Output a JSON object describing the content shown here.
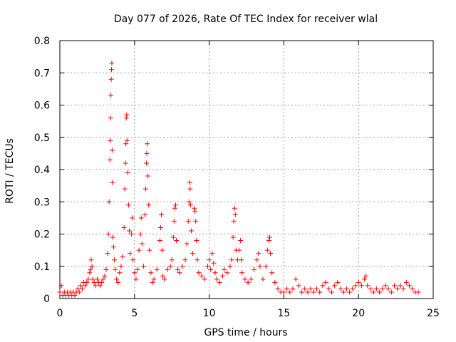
{
  "chart_data": {
    "type": "scatter",
    "title": "Day 077 of 2026, Rate Of TEC Index for receiver wlal",
    "xlabel": "GPS time / hours",
    "ylabel": "ROTI / TECUs",
    "xlim": [
      0,
      25
    ],
    "ylim": [
      0,
      0.8
    ],
    "xticks": [
      0,
      5,
      10,
      15,
      20,
      25
    ],
    "yticks": [
      0,
      0.1,
      0.2,
      0.3,
      0.4,
      0.5,
      0.6,
      0.7,
      0.8
    ],
    "xtick_labels": [
      "0",
      "5",
      "10",
      "15",
      "20",
      "25"
    ],
    "ytick_labels": [
      "0",
      "0.1",
      "0.2",
      "0.3",
      "0.4",
      "0.5",
      "0.6",
      "0.7",
      "0.8"
    ],
    "grid": true,
    "marker": "+",
    "color": "#ff0000",
    "series": [
      {
        "name": "ROTI",
        "points": [
          [
            0.0,
            0.02
          ],
          [
            0.1,
            0.04
          ],
          [
            0.2,
            0.01
          ],
          [
            0.3,
            0.02
          ],
          [
            0.4,
            0.01
          ],
          [
            0.5,
            0.02
          ],
          [
            0.6,
            0.01
          ],
          [
            0.7,
            0.02
          ],
          [
            0.8,
            0.01
          ],
          [
            0.9,
            0.02
          ],
          [
            1.0,
            0.01
          ],
          [
            1.1,
            0.02
          ],
          [
            1.2,
            0.03
          ],
          [
            1.3,
            0.02
          ],
          [
            1.4,
            0.04
          ],
          [
            1.5,
            0.03
          ],
          [
            1.6,
            0.05
          ],
          [
            1.7,
            0.04
          ],
          [
            1.8,
            0.05
          ],
          [
            1.9,
            0.06
          ],
          [
            2.0,
            0.08
          ],
          [
            2.05,
            0.09
          ],
          [
            2.1,
            0.12
          ],
          [
            2.15,
            0.1
          ],
          [
            2.2,
            0.06
          ],
          [
            2.3,
            0.05
          ],
          [
            2.4,
            0.04
          ],
          [
            2.5,
            0.06
          ],
          [
            2.6,
            0.05
          ],
          [
            2.7,
            0.04
          ],
          [
            2.8,
            0.05
          ],
          [
            2.9,
            0.06
          ],
          [
            3.0,
            0.07
          ],
          [
            3.1,
            0.09
          ],
          [
            3.2,
            0.14
          ],
          [
            3.25,
            0.2
          ],
          [
            3.3,
            0.3
          ],
          [
            3.35,
            0.43
          ],
          [
            3.38,
            0.49
          ],
          [
            3.4,
            0.56
          ],
          [
            3.42,
            0.63
          ],
          [
            3.44,
            0.68
          ],
          [
            3.46,
            0.71
          ],
          [
            3.48,
            0.73
          ],
          [
            3.5,
            0.46
          ],
          [
            3.52,
            0.36
          ],
          [
            3.55,
            0.19
          ],
          [
            3.6,
            0.16
          ],
          [
            3.65,
            0.12
          ],
          [
            3.7,
            0.09
          ],
          [
            3.8,
            0.06
          ],
          [
            3.9,
            0.05
          ],
          [
            4.0,
            0.08
          ],
          [
            4.1,
            0.1
          ],
          [
            4.2,
            0.13
          ],
          [
            4.3,
            0.22
          ],
          [
            4.35,
            0.34
          ],
          [
            4.4,
            0.42
          ],
          [
            4.42,
            0.48
          ],
          [
            4.45,
            0.56
          ],
          [
            4.48,
            0.57
          ],
          [
            4.5,
            0.49
          ],
          [
            4.55,
            0.39
          ],
          [
            4.6,
            0.29
          ],
          [
            4.65,
            0.21
          ],
          [
            4.7,
            0.14
          ],
          [
            4.8,
            0.2
          ],
          [
            4.85,
            0.25
          ],
          [
            4.9,
            0.12
          ],
          [
            5.0,
            0.08
          ],
          [
            5.1,
            0.06
          ],
          [
            5.2,
            0.09
          ],
          [
            5.3,
            0.15
          ],
          [
            5.4,
            0.2
          ],
          [
            5.45,
            0.25
          ],
          [
            5.5,
            0.17
          ],
          [
            5.6,
            0.1
          ],
          [
            5.7,
            0.26
          ],
          [
            5.75,
            0.34
          ],
          [
            5.8,
            0.42
          ],
          [
            5.82,
            0.45
          ],
          [
            5.85,
            0.48
          ],
          [
            5.9,
            0.38
          ],
          [
            5.95,
            0.29
          ],
          [
            6.0,
            0.15
          ],
          [
            6.1,
            0.08
          ],
          [
            6.2,
            0.05
          ],
          [
            6.3,
            0.06
          ],
          [
            6.5,
            0.09
          ],
          [
            6.7,
            0.18
          ],
          [
            6.75,
            0.22
          ],
          [
            6.8,
            0.26
          ],
          [
            6.85,
            0.15
          ],
          [
            6.9,
            0.07
          ],
          [
            7.0,
            0.06
          ],
          [
            7.2,
            0.09
          ],
          [
            7.4,
            0.1
          ],
          [
            7.5,
            0.12
          ],
          [
            7.6,
            0.19
          ],
          [
            7.65,
            0.24
          ],
          [
            7.7,
            0.28
          ],
          [
            7.75,
            0.29
          ],
          [
            7.8,
            0.18
          ],
          [
            7.9,
            0.09
          ],
          [
            8.0,
            0.08
          ],
          [
            8.2,
            0.1
          ],
          [
            8.4,
            0.12
          ],
          [
            8.5,
            0.17
          ],
          [
            8.6,
            0.24
          ],
          [
            8.65,
            0.3
          ],
          [
            8.7,
            0.36
          ],
          [
            8.72,
            0.34
          ],
          [
            8.75,
            0.29
          ],
          [
            8.8,
            0.21
          ],
          [
            8.9,
            0.14
          ],
          [
            9.0,
            0.28
          ],
          [
            9.05,
            0.27
          ],
          [
            9.1,
            0.24
          ],
          [
            9.15,
            0.18
          ],
          [
            9.2,
            0.12
          ],
          [
            9.3,
            0.08
          ],
          [
            9.5,
            0.07
          ],
          [
            9.7,
            0.06
          ],
          [
            9.9,
            0.1
          ],
          [
            10.0,
            0.12
          ],
          [
            10.1,
            0.09
          ],
          [
            10.2,
            0.14
          ],
          [
            10.3,
            0.11
          ],
          [
            10.4,
            0.08
          ],
          [
            10.5,
            0.06
          ],
          [
            10.7,
            0.05
          ],
          [
            10.9,
            0.07
          ],
          [
            11.0,
            0.09
          ],
          [
            11.2,
            0.08
          ],
          [
            11.4,
            0.1
          ],
          [
            11.5,
            0.12
          ],
          [
            11.6,
            0.19
          ],
          [
            11.65,
            0.24
          ],
          [
            11.7,
            0.28
          ],
          [
            11.75,
            0.26
          ],
          [
            11.8,
            0.15
          ],
          [
            11.9,
            0.12
          ],
          [
            12.0,
            0.15
          ],
          [
            12.1,
            0.18
          ],
          [
            12.15,
            0.12
          ],
          [
            12.2,
            0.08
          ],
          [
            12.4,
            0.06
          ],
          [
            12.6,
            0.05
          ],
          [
            12.8,
            0.06
          ],
          [
            13.0,
            0.09
          ],
          [
            13.2,
            0.12
          ],
          [
            13.3,
            0.14
          ],
          [
            13.4,
            0.1
          ],
          [
            13.6,
            0.06
          ],
          [
            13.8,
            0.1
          ],
          [
            13.9,
            0.15
          ],
          [
            14.0,
            0.18
          ],
          [
            14.05,
            0.19
          ],
          [
            14.1,
            0.14
          ],
          [
            14.2,
            0.08
          ],
          [
            14.4,
            0.05
          ],
          [
            14.6,
            0.03
          ],
          [
            14.8,
            0.02
          ],
          [
            15.0,
            0.02
          ],
          [
            15.2,
            0.03
          ],
          [
            15.4,
            0.02
          ],
          [
            15.6,
            0.03
          ],
          [
            15.8,
            0.06
          ],
          [
            16.0,
            0.04
          ],
          [
            16.2,
            0.02
          ],
          [
            16.4,
            0.03
          ],
          [
            16.6,
            0.02
          ],
          [
            16.8,
            0.03
          ],
          [
            17.0,
            0.02
          ],
          [
            17.2,
            0.03
          ],
          [
            17.4,
            0.02
          ],
          [
            17.6,
            0.04
          ],
          [
            17.8,
            0.05
          ],
          [
            18.0,
            0.03
          ],
          [
            18.2,
            0.02
          ],
          [
            18.4,
            0.04
          ],
          [
            18.6,
            0.05
          ],
          [
            18.8,
            0.03
          ],
          [
            19.0,
            0.02
          ],
          [
            19.2,
            0.03
          ],
          [
            19.4,
            0.02
          ],
          [
            19.6,
            0.03
          ],
          [
            19.8,
            0.04
          ],
          [
            20.0,
            0.05
          ],
          [
            20.2,
            0.04
          ],
          [
            20.4,
            0.06
          ],
          [
            20.5,
            0.07
          ],
          [
            20.6,
            0.04
          ],
          [
            20.8,
            0.03
          ],
          [
            21.0,
            0.02
          ],
          [
            21.2,
            0.03
          ],
          [
            21.4,
            0.02
          ],
          [
            21.6,
            0.03
          ],
          [
            21.8,
            0.04
          ],
          [
            22.0,
            0.03
          ],
          [
            22.2,
            0.02
          ],
          [
            22.4,
            0.04
          ],
          [
            22.6,
            0.03
          ],
          [
            22.8,
            0.04
          ],
          [
            23.0,
            0.03
          ],
          [
            23.2,
            0.05
          ],
          [
            23.4,
            0.04
          ],
          [
            23.6,
            0.03
          ],
          [
            23.8,
            0.02
          ],
          [
            24.0,
            0.02
          ]
        ]
      }
    ]
  }
}
